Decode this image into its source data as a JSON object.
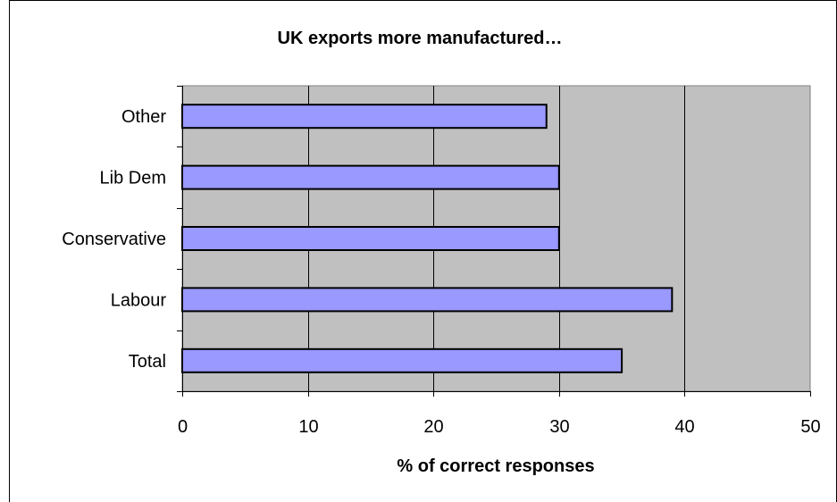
{
  "chart_data": {
    "type": "bar",
    "orientation": "horizontal",
    "title": "UK exports more manufactured…",
    "xlabel": "% of correct responses",
    "ylabel": "",
    "categories": [
      "Other",
      "Lib Dem",
      "Conservative",
      "Labour",
      "Total"
    ],
    "values": [
      29,
      30,
      30,
      39,
      35
    ],
    "xlim": [
      0,
      50
    ],
    "xticks": [
      "0",
      "10",
      "20",
      "30",
      "40",
      "50"
    ],
    "grid": "vertical",
    "legend": "none",
    "colors": {
      "bar": "#9999ff",
      "bar_border": "#000000",
      "plot_background": "#c0c0c0",
      "grid": "#000000"
    }
  }
}
